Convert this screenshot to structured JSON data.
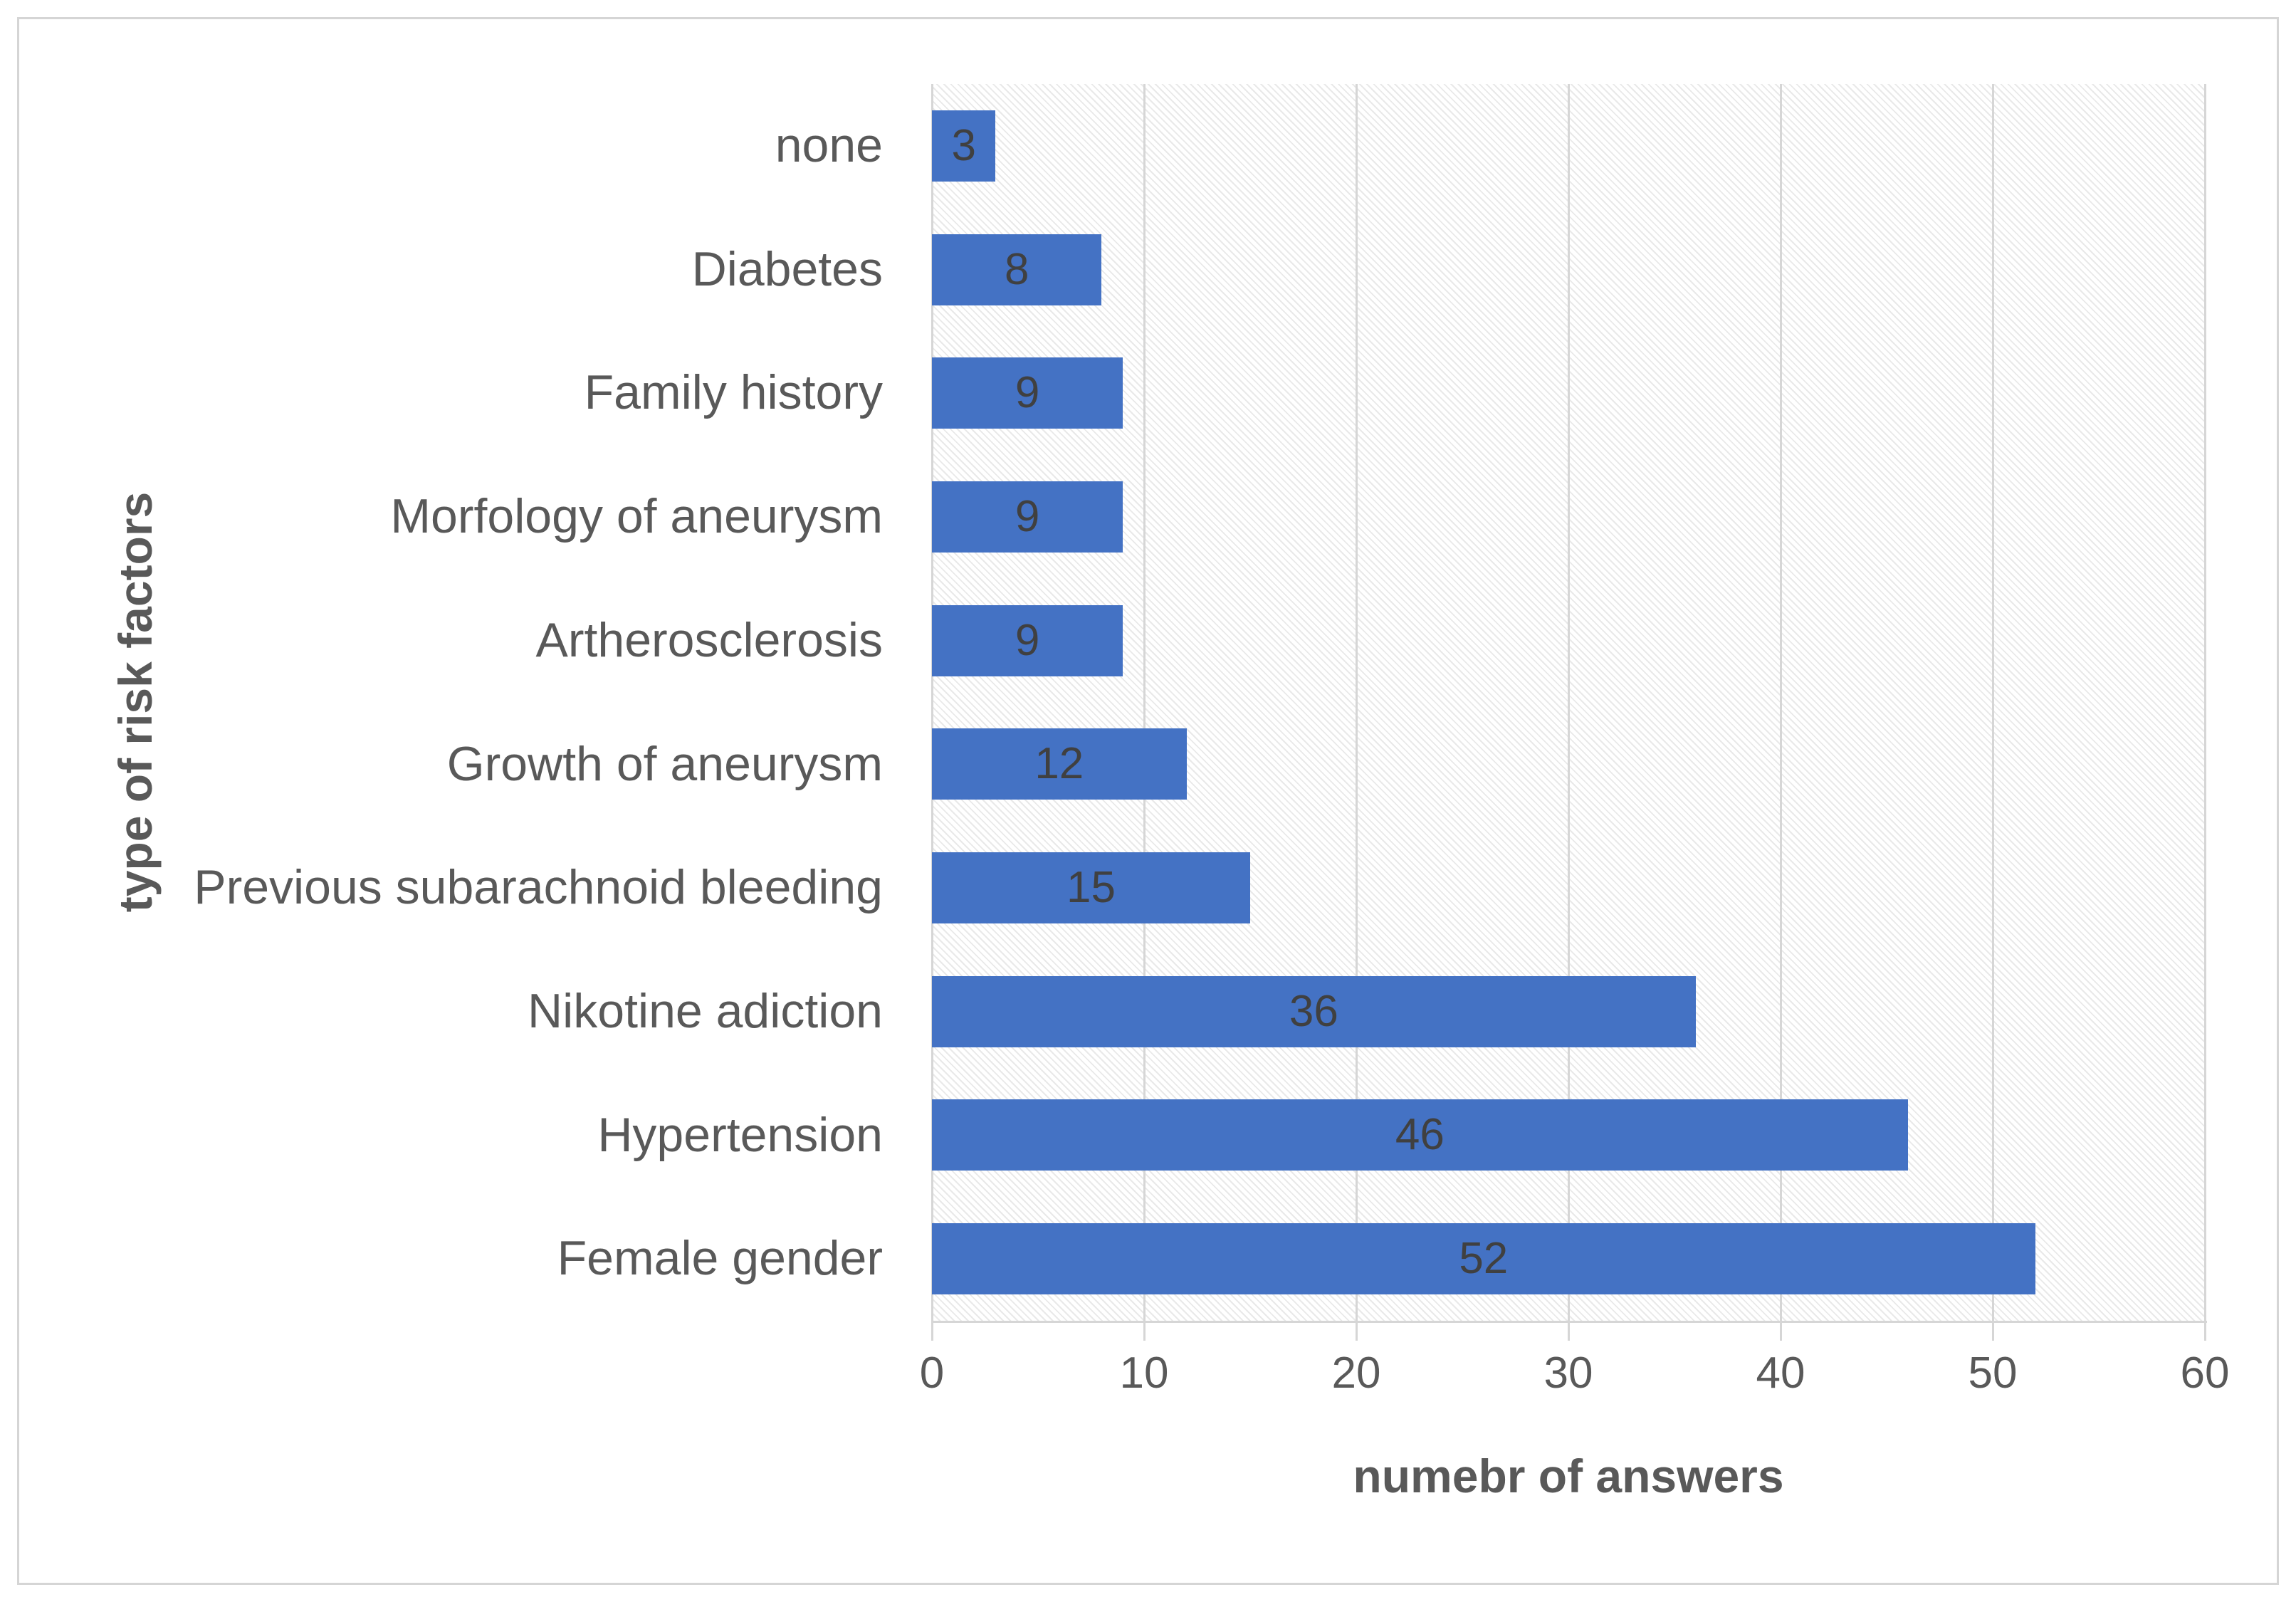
{
  "chart_data": {
    "type": "bar",
    "orientation": "horizontal",
    "categories": [
      "none",
      "Diabetes",
      "Family history",
      "Morfology of aneurysm",
      "Artherosclerosis",
      "Growth of aneurysm",
      "Previous subarachnoid bleeding",
      "Nikotine adiction",
      "Hypertension",
      "Female gender"
    ],
    "values": [
      3,
      8,
      9,
      9,
      9,
      12,
      15,
      36,
      46,
      52
    ],
    "data_labels": [
      "3",
      "8",
      "9",
      "9",
      "9",
      "12",
      "15",
      "36",
      "46",
      "52"
    ],
    "xlabel": "numebr of answers",
    "ylabel": "type of risk factors",
    "xlim": [
      0,
      60
    ],
    "xticks": [
      0,
      10,
      20,
      30,
      40,
      50,
      60
    ],
    "grid": true,
    "legend": false,
    "plot_background": "diagonal-hatch",
    "colors": {
      "bar": "#4472C4",
      "data_label": "#404040",
      "axis_text": "#595959",
      "gridline": "#d6d6d6",
      "frame_border": "#d5d5d5",
      "hatch_line": "#e9e9e9"
    }
  }
}
